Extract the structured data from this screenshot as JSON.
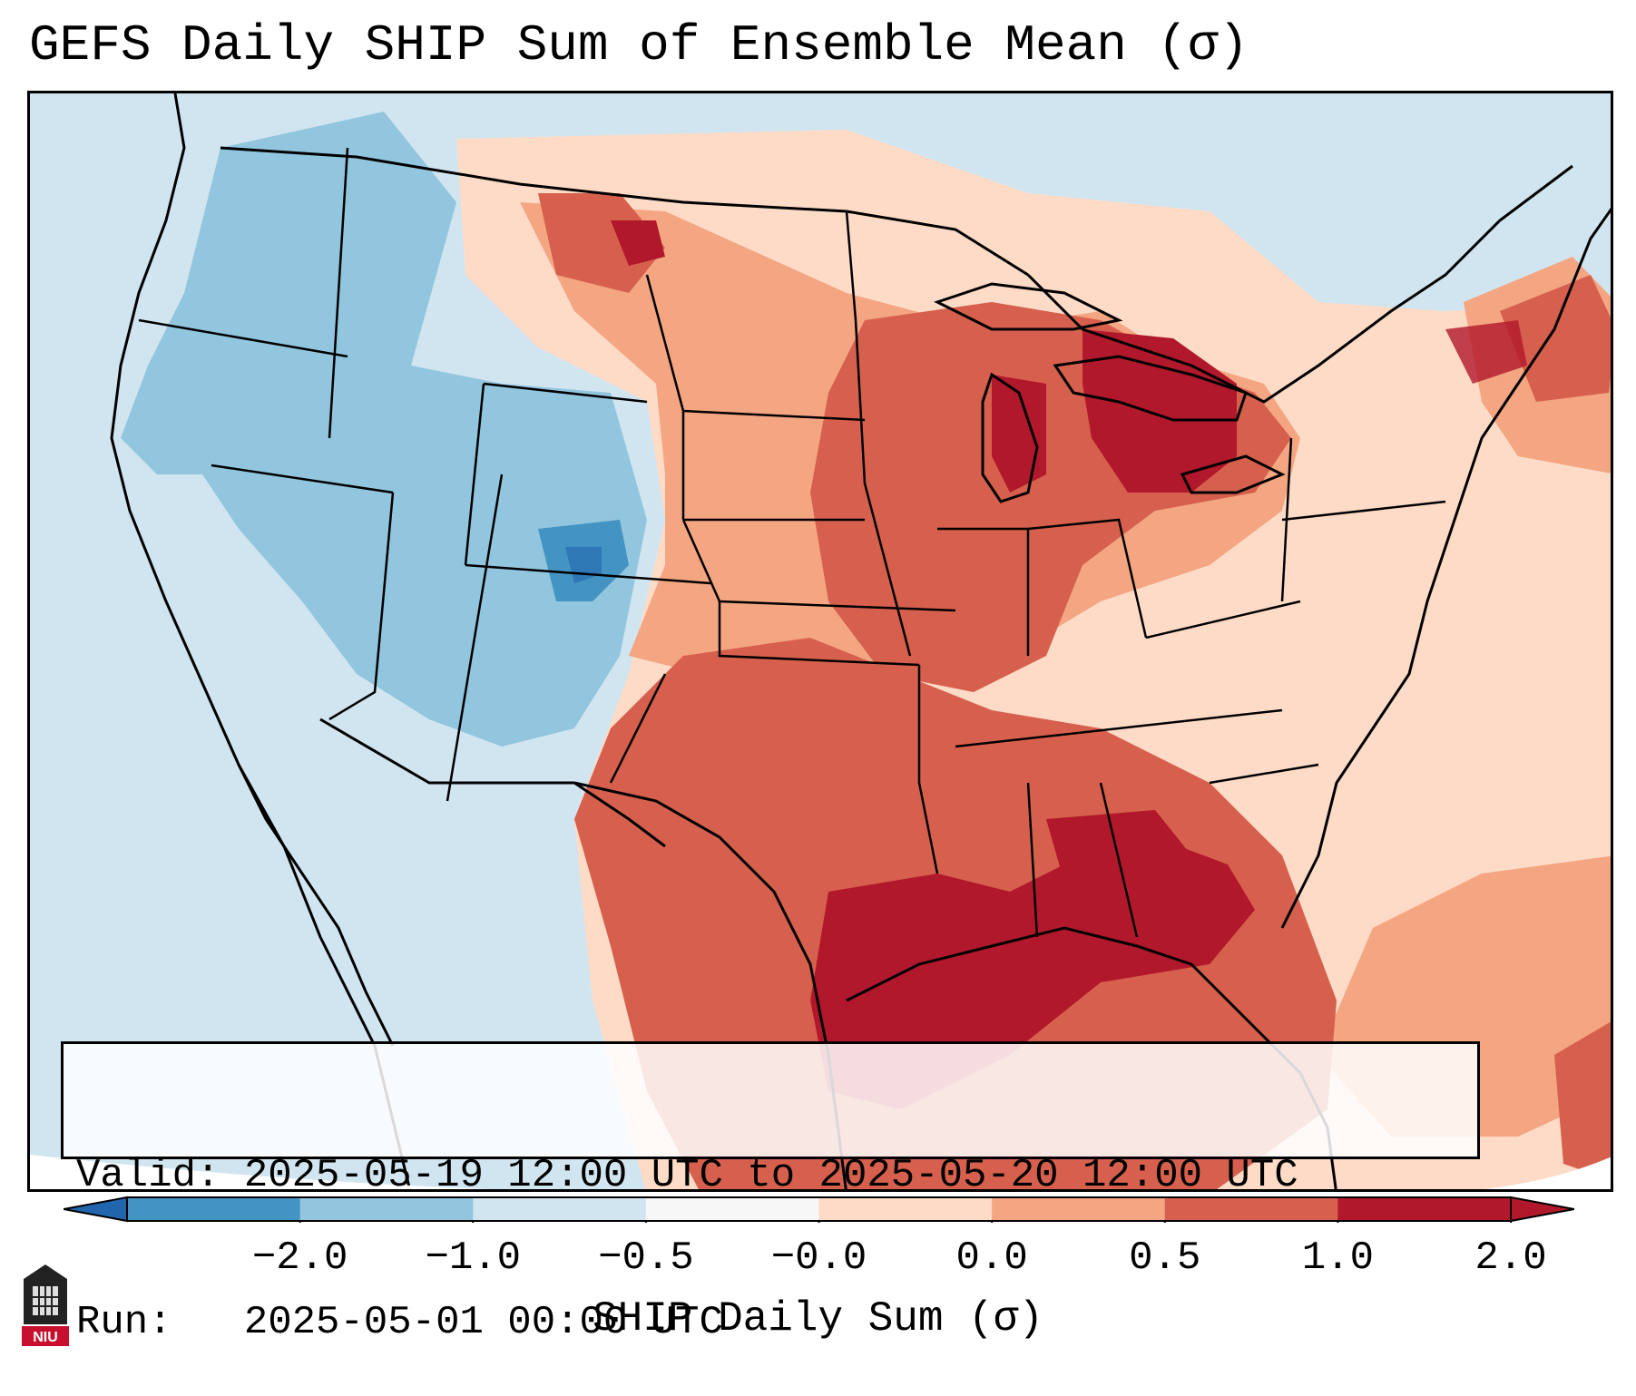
{
  "title": "GEFS Daily SHIP Sum of Ensemble Mean (σ)",
  "info": {
    "valid_label": "Valid:",
    "valid_value": "2025-05-19 12:00 UTC to 2025-05-20 12:00 UTC",
    "run_label": "Run:",
    "run_value": "2025-05-01 00:00 UTC"
  },
  "colorbar": {
    "label": "SHIP Daily Sum (σ)",
    "ticks": [
      "−2.0",
      "−1.0",
      "−0.5",
      "−0.0",
      "0.0",
      "0.5",
      "1.0",
      "2.0"
    ],
    "colors": [
      "#4393c3",
      "#92c5de",
      "#d1e5f0",
      "#f7f7f7",
      "#fddbc7",
      "#f4a582",
      "#d6604d",
      "#b2182b"
    ],
    "extend_low_color": "#2166ac",
    "extend_high_color": "#b2182b"
  },
  "logo": {
    "text": "NIU"
  }
}
